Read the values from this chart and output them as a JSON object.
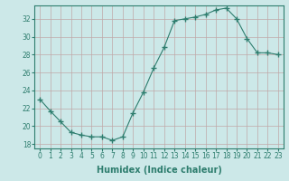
{
  "x": [
    0,
    1,
    2,
    3,
    4,
    5,
    6,
    7,
    8,
    9,
    10,
    11,
    12,
    13,
    14,
    15,
    16,
    17,
    18,
    19,
    20,
    21,
    22,
    23
  ],
  "y": [
    23,
    21.7,
    20.5,
    19.3,
    19.0,
    18.8,
    18.8,
    18.4,
    18.8,
    21.5,
    23.8,
    26.5,
    28.8,
    31.8,
    32.0,
    32.2,
    32.5,
    33.0,
    33.2,
    32.0,
    29.8,
    28.2,
    28.2,
    28.0
  ],
  "line_color": "#2e7d6e",
  "marker": "+",
  "marker_size": 4,
  "bg_color": "#cce8e8",
  "grid_color": "#c0a8a8",
  "xlabel": "Humidex (Indice chaleur)",
  "xlim": [
    -0.5,
    23.5
  ],
  "ylim": [
    17.5,
    33.5
  ],
  "yticks": [
    18,
    20,
    22,
    24,
    26,
    28,
    30,
    32
  ],
  "xticks": [
    0,
    1,
    2,
    3,
    4,
    5,
    6,
    7,
    8,
    9,
    10,
    11,
    12,
    13,
    14,
    15,
    16,
    17,
    18,
    19,
    20,
    21,
    22,
    23
  ],
  "xtick_labels": [
    "0",
    "1",
    "2",
    "3",
    "4",
    "5",
    "6",
    "7",
    "8",
    "9",
    "10",
    "11",
    "12",
    "13",
    "14",
    "15",
    "16",
    "17",
    "18",
    "19",
    "20",
    "21",
    "22",
    "23"
  ],
  "tick_color": "#2e7d6e",
  "label_fontsize": 7,
  "tick_fontsize": 5.5,
  "linewidth": 0.8,
  "marker_color": "#2e7d6e"
}
